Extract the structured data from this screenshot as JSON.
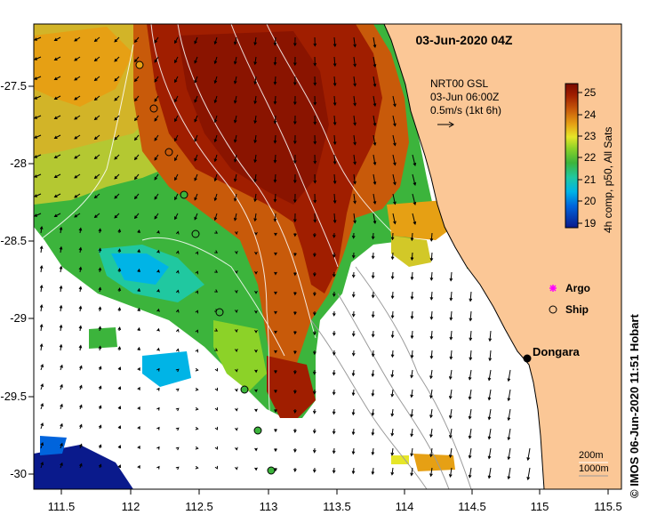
{
  "map": {
    "title": "03-Jun-2020 04Z",
    "hf_radar": {
      "site": "NRT00 GSL",
      "time": "03-Jun 06:00Z",
      "scale": "0.5m/s (1kt 6h)"
    },
    "colorbar": {
      "label": "4h comp, p50, All Sats",
      "ticks": [
        "25",
        "24",
        "23",
        "22",
        "21",
        "20",
        "19"
      ],
      "range": [
        19,
        25.5
      ]
    },
    "legend": {
      "argo": "Argo",
      "ship": "Ship",
      "argo_color": "#ff00ff"
    },
    "place": {
      "name": "Dongara"
    },
    "isobaths": {
      "shallow": "200m",
      "deep": "1000m"
    },
    "x_ticks": [
      "111.5",
      "112",
      "112.5",
      "113",
      "113.5",
      "114",
      "114.5",
      "115",
      "115.5"
    ],
    "y_ticks": [
      "-27.5",
      "-28",
      "-28.5",
      "-29",
      "-29.5",
      "-30"
    ],
    "credit": "© IMOS 06-Jun-2020 11:51 Hobart",
    "colors": {
      "land": "#fbc796",
      "frame": "#000000"
    }
  }
}
